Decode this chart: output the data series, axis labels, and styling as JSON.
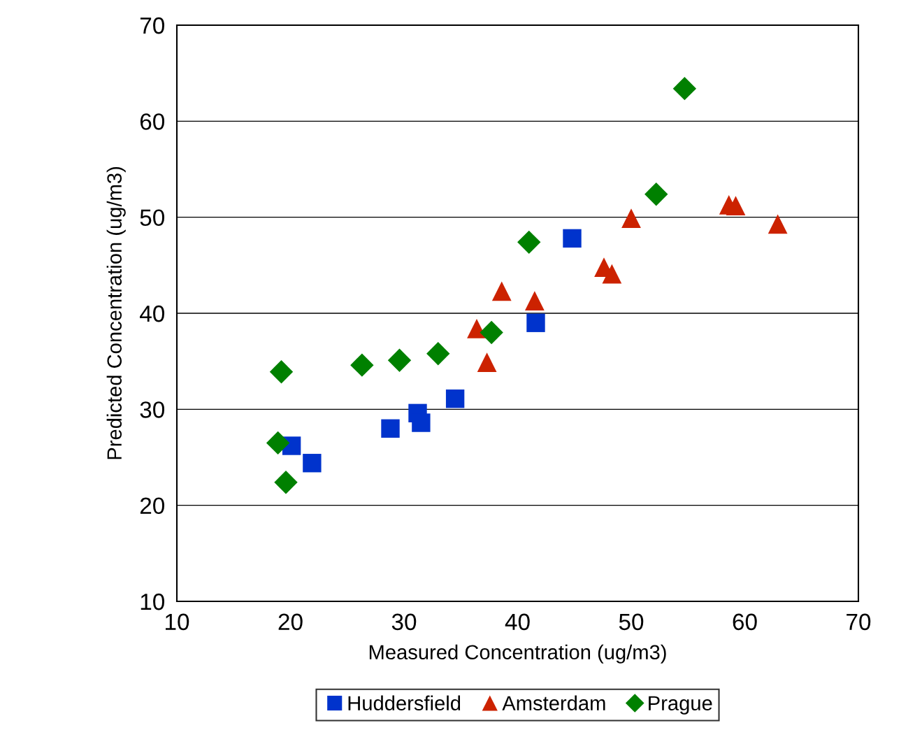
{
  "chart_data": {
    "type": "scatter",
    "xlabel": "Measured Concentration (ug/m3)",
    "ylabel": "Predicted Concentration (ug/m3)",
    "xlim": [
      10,
      70
    ],
    "xticks": [
      10,
      20,
      30,
      40,
      50,
      60,
      70
    ],
    "ylim": [
      10,
      70
    ],
    "yticks": [
      10,
      20,
      30,
      40,
      50,
      60,
      70
    ],
    "grid": "y",
    "legend": "bottom",
    "series": [
      {
        "name": "Huddersfield",
        "color": "#0033cc",
        "marker": "square",
        "x": [
          20.1,
          21.9,
          28.8,
          31.2,
          31.5,
          34.5,
          41.6,
          44.8
        ],
        "values": [
          26.2,
          24.4,
          28.0,
          29.6,
          28.6,
          31.1,
          39.0,
          47.8
        ]
      },
      {
        "name": "Amsterdam",
        "color": "#cc2200",
        "marker": "triangle",
        "x": [
          36.4,
          37.3,
          38.6,
          41.5,
          47.6,
          48.3,
          50.0,
          58.6,
          59.2,
          62.9
        ],
        "values": [
          38.4,
          34.9,
          42.3,
          41.3,
          44.8,
          44.1,
          49.9,
          51.3,
          51.2,
          49.3
        ]
      },
      {
        "name": "Prague",
        "color": "#008000",
        "marker": "diamond",
        "x": [
          19.2,
          18.9,
          19.6,
          26.3,
          29.6,
          33.0,
          37.7,
          41.0,
          52.2,
          54.7
        ],
        "values": [
          33.9,
          26.5,
          22.4,
          34.6,
          35.1,
          35.8,
          38.0,
          47.4,
          52.4,
          63.4
        ]
      }
    ]
  }
}
